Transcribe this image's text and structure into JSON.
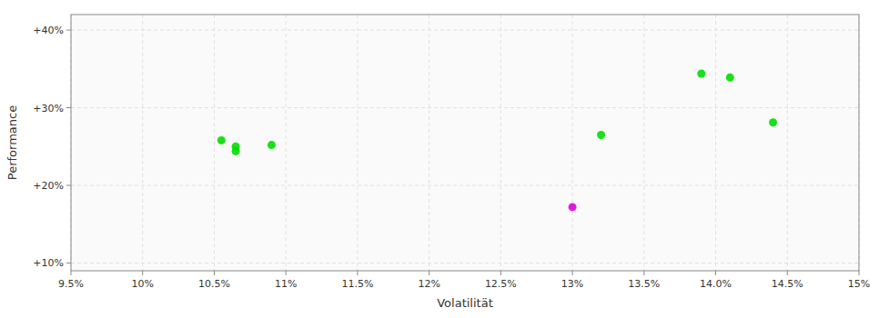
{
  "chart_data": {
    "type": "scatter",
    "xlabel": "Volatilität",
    "ylabel": "Performance",
    "series": [
      {
        "color": "#00dd00",
        "x": [
          0.1055,
          0.1065,
          0.1065,
          0.109,
          0.132,
          0.139,
          0.141,
          0.144
        ],
        "values": [
          0.258,
          0.25,
          0.244,
          0.252,
          0.265,
          0.344,
          0.339,
          0.281
        ]
      },
      {
        "color": "#dd00dd",
        "x": [
          0.13
        ],
        "values": [
          0.172
        ]
      }
    ],
    "xlim": [
      0.095,
      0.15
    ],
    "ylim": [
      0.09,
      0.42
    ],
    "xticks": [
      {
        "value": 0.095,
        "label": "9.5%"
      },
      {
        "value": 0.1,
        "label": "10%"
      },
      {
        "value": 0.105,
        "label": "10.5%"
      },
      {
        "value": 0.11,
        "label": "11%"
      },
      {
        "value": 0.115,
        "label": "11.5%"
      },
      {
        "value": 0.12,
        "label": "12%"
      },
      {
        "value": 0.125,
        "label": "12.5%"
      },
      {
        "value": 0.13,
        "label": "13%"
      },
      {
        "value": 0.135,
        "label": "13.5%"
      },
      {
        "value": 0.14,
        "label": "14.0%"
      },
      {
        "value": 0.145,
        "label": "14.5%"
      },
      {
        "value": 0.15,
        "label": "15%"
      }
    ],
    "yticks": [
      {
        "value": 0.1,
        "label": "+10%"
      },
      {
        "value": 0.2,
        "label": "+20%"
      },
      {
        "value": 0.3,
        "label": "+30%"
      },
      {
        "value": 0.4,
        "label": "+40%"
      }
    ],
    "grid": true
  }
}
